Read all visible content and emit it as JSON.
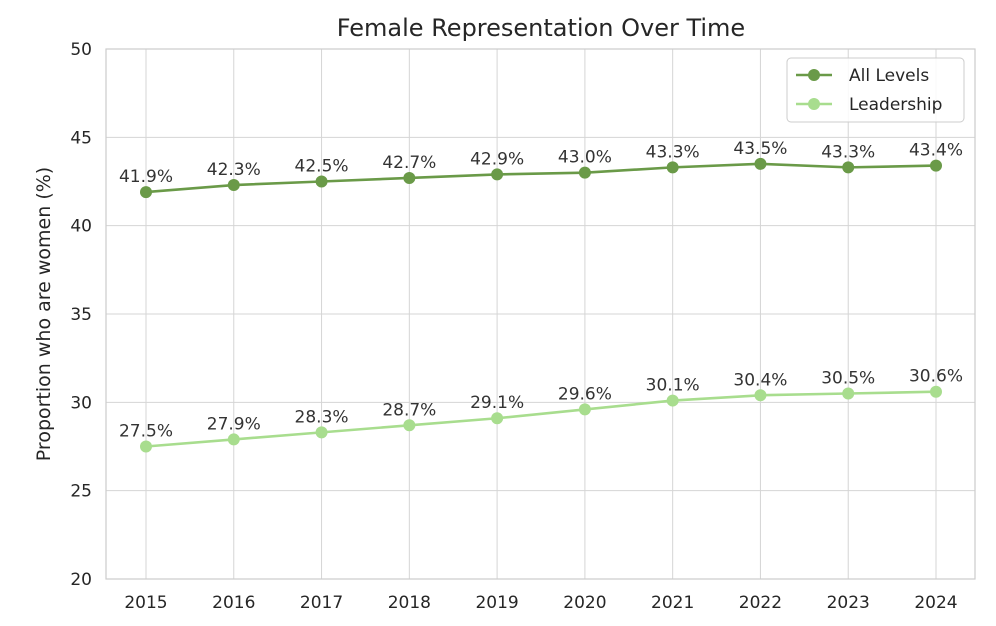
{
  "chart_data": {
    "type": "line",
    "title": "Female Representation Over Time",
    "xlabel": "",
    "ylabel": "Proportion who are women (%)",
    "x": [
      "2015",
      "2016",
      "2017",
      "2018",
      "2019",
      "2020",
      "2021",
      "2022",
      "2023",
      "2024"
    ],
    "ylim": [
      20,
      50
    ],
    "yticks": [
      20,
      25,
      30,
      35,
      40,
      45,
      50
    ],
    "grid": true,
    "legend_position": "top-right",
    "series": [
      {
        "name": "All Levels",
        "color": "#6a9a48",
        "values": [
          41.9,
          42.3,
          42.5,
          42.7,
          42.9,
          43.0,
          43.3,
          43.5,
          43.3,
          43.4
        ],
        "labels": [
          "41.9%",
          "42.3%",
          "42.5%",
          "42.7%",
          "42.9%",
          "43.0%",
          "43.3%",
          "43.5%",
          "43.3%",
          "43.4%"
        ]
      },
      {
        "name": "Leadership",
        "color": "#a8dd8e",
        "values": [
          27.5,
          27.9,
          28.3,
          28.7,
          29.1,
          29.6,
          30.1,
          30.4,
          30.5,
          30.6
        ],
        "labels": [
          "27.5%",
          "27.9%",
          "28.3%",
          "28.7%",
          "29.1%",
          "29.6%",
          "30.1%",
          "30.4%",
          "30.5%",
          "30.6%"
        ]
      }
    ]
  }
}
